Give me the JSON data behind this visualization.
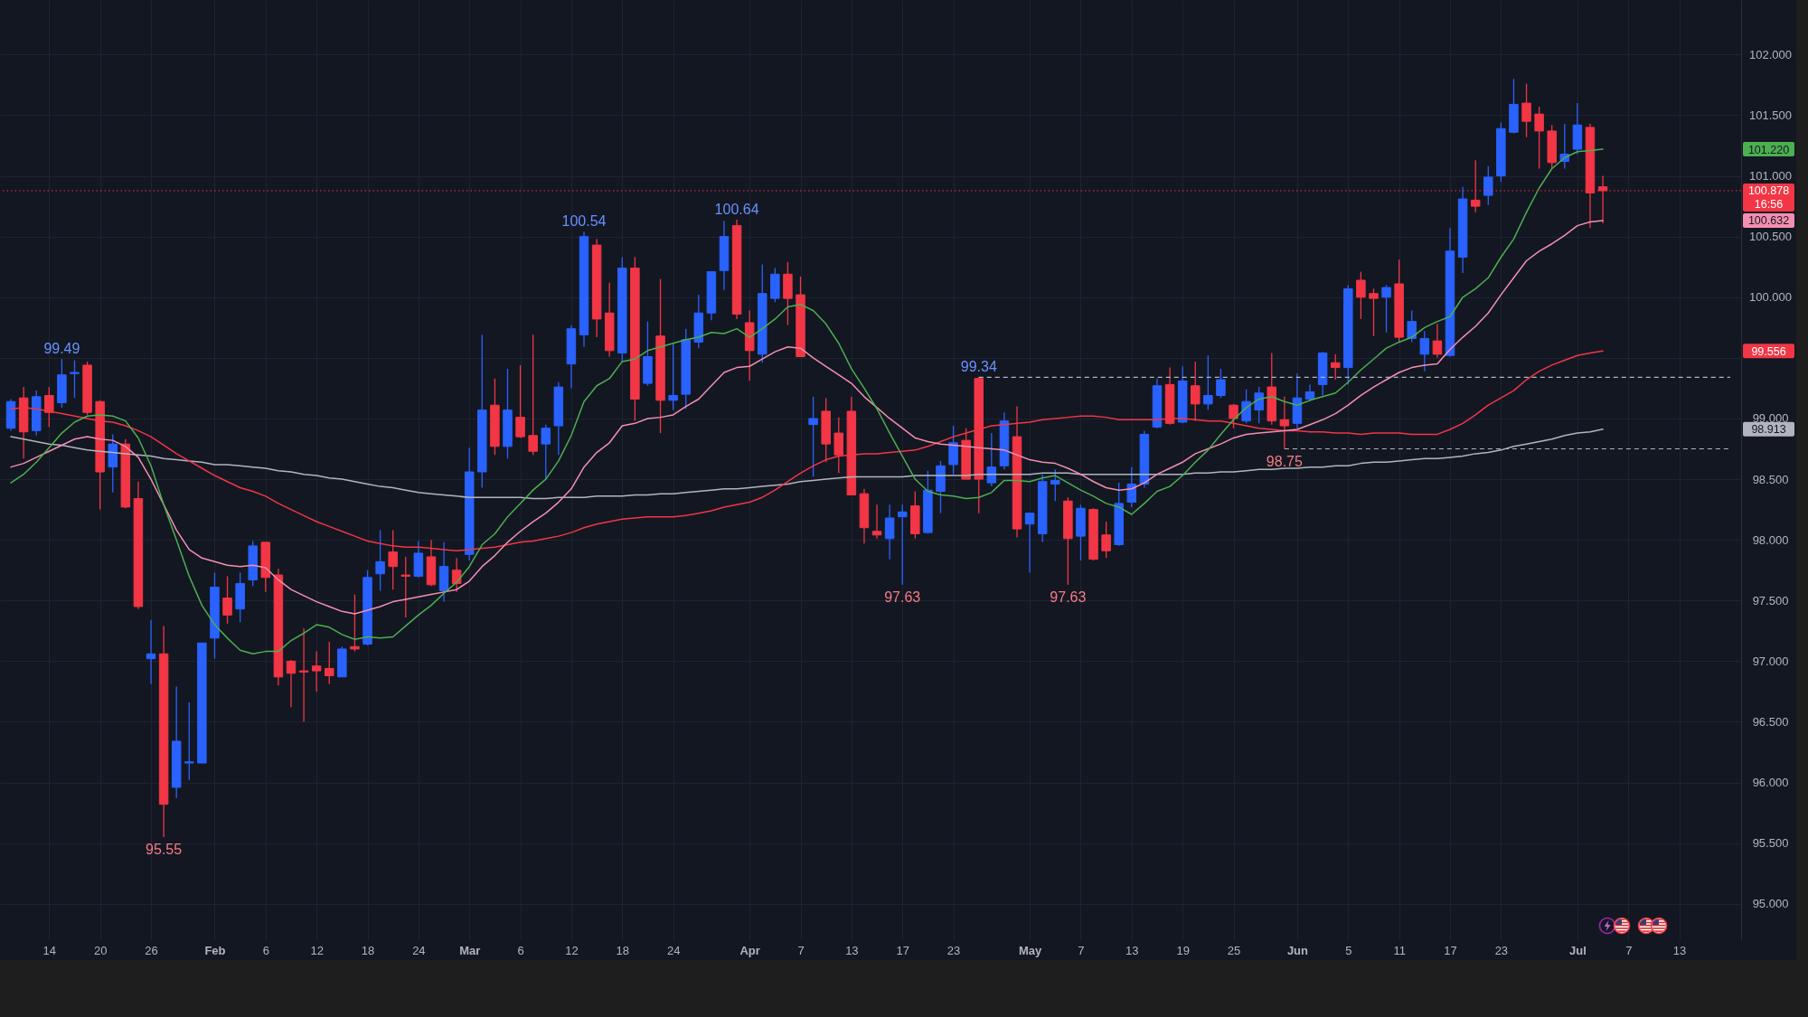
{
  "chart_data": {
    "type": "candlestick",
    "categories": [
      null,
      null,
      null,
      "14",
      null,
      null,
      null,
      "20",
      null,
      null,
      null,
      "26",
      null,
      null,
      null,
      null,
      "Feb",
      null,
      null,
      null,
      "6",
      null,
      null,
      null,
      "12",
      null,
      null,
      null,
      "18",
      null,
      null,
      null,
      "24",
      null,
      null,
      null,
      "Mar",
      null,
      null,
      null,
      "6",
      null,
      null,
      null,
      "12",
      null,
      null,
      null,
      "18",
      null,
      null,
      null,
      "24",
      null,
      null,
      null,
      null,
      null,
      "Apr",
      null,
      null,
      null,
      "7",
      null,
      null,
      null,
      "13",
      null,
      null,
      null,
      "17",
      null,
      null,
      null,
      "23",
      null,
      null,
      null,
      null,
      null,
      "May",
      null,
      null,
      null,
      "7",
      null,
      null,
      null,
      "13",
      null,
      null,
      null,
      "19",
      null,
      null,
      null,
      "25",
      null,
      null,
      null,
      null,
      "Jun",
      null,
      null,
      null,
      "5",
      null,
      null,
      null,
      "11",
      null,
      null,
      null,
      "17",
      null,
      null,
      null,
      "23",
      null,
      null,
      null,
      null,
      null,
      "Jul",
      null,
      null,
      null,
      "7",
      null,
      null,
      null,
      "13",
      null,
      null,
      null,
      null
    ],
    "ohlc": [
      [
        98.92,
        99.16,
        98.9,
        99.14
      ],
      [
        99.17,
        99.26,
        98.67,
        98.89
      ],
      [
        98.9,
        99.23,
        98.86,
        99.18
      ],
      [
        99.19,
        99.26,
        98.93,
        99.05
      ],
      [
        99.13,
        99.49,
        99.09,
        99.36
      ],
      [
        99.37,
        99.48,
        99.17,
        99.38
      ],
      [
        99.44,
        99.47,
        99.03,
        99.05
      ],
      [
        99.14,
        99.15,
        98.25,
        98.56
      ],
      [
        98.6,
        98.87,
        98.39,
        98.79
      ],
      [
        98.79,
        98.83,
        98.26,
        98.27
      ],
      [
        98.34,
        98.48,
        97.43,
        97.45
      ],
      [
        97.02,
        97.34,
        96.81,
        97.06
      ],
      [
        97.06,
        97.29,
        95.55,
        95.82
      ],
      [
        95.96,
        96.79,
        95.87,
        96.34
      ],
      [
        96.16,
        96.66,
        96.02,
        96.17
      ],
      [
        96.16,
        97.15,
        96.16,
        97.15
      ],
      [
        97.19,
        97.73,
        97.02,
        97.61
      ],
      [
        97.52,
        97.7,
        97.31,
        97.38
      ],
      [
        97.43,
        97.73,
        97.32,
        97.64
      ],
      [
        97.67,
        97.99,
        97.62,
        97.95
      ],
      [
        97.98,
        97.98,
        97.57,
        97.69
      ],
      [
        97.71,
        97.76,
        96.8,
        96.87
      ],
      [
        97.0,
        97.01,
        96.62,
        96.9
      ],
      [
        96.92,
        97.27,
        96.5,
        96.91
      ],
      [
        96.96,
        97.08,
        96.75,
        96.92
      ],
      [
        96.94,
        97.16,
        96.81,
        96.88
      ],
      [
        96.87,
        97.12,
        96.87,
        97.1
      ],
      [
        97.12,
        97.55,
        97.08,
        97.1
      ],
      [
        97.14,
        97.75,
        97.13,
        97.69
      ],
      [
        97.72,
        98.08,
        97.58,
        97.82
      ],
      [
        97.9,
        98.08,
        97.59,
        97.78
      ],
      [
        97.71,
        97.86,
        97.36,
        97.7
      ],
      [
        97.7,
        97.99,
        97.69,
        97.89
      ],
      [
        97.86,
        98.0,
        97.62,
        97.63
      ],
      [
        97.58,
        97.98,
        97.49,
        97.78
      ],
      [
        97.75,
        97.85,
        97.57,
        97.64
      ],
      [
        97.88,
        98.76,
        97.83,
        98.56
      ],
      [
        98.56,
        99.69,
        98.43,
        99.07
      ],
      [
        99.11,
        99.33,
        98.7,
        98.77
      ],
      [
        98.77,
        99.41,
        98.67,
        99.07
      ],
      [
        99.01,
        99.44,
        98.84,
        98.85
      ],
      [
        98.86,
        99.69,
        98.7,
        98.73
      ],
      [
        98.79,
        98.95,
        98.5,
        98.92
      ],
      [
        98.94,
        99.3,
        98.7,
        99.26
      ],
      [
        99.45,
        99.77,
        99.25,
        99.74
      ],
      [
        99.69,
        100.54,
        99.59,
        100.5
      ],
      [
        100.43,
        100.48,
        99.67,
        99.82
      ],
      [
        99.87,
        100.12,
        99.51,
        99.56
      ],
      [
        99.54,
        100.33,
        99.47,
        100.24
      ],
      [
        100.24,
        100.33,
        98.98,
        99.16
      ],
      [
        99.29,
        99.8,
        99.27,
        99.51
      ],
      [
        99.68,
        100.15,
        98.88,
        99.15
      ],
      [
        99.15,
        99.62,
        99.07,
        99.19
      ],
      [
        99.2,
        99.74,
        99.08,
        99.65
      ],
      [
        99.63,
        100.02,
        99.58,
        99.87
      ],
      [
        99.87,
        100.21,
        99.81,
        100.21
      ],
      [
        100.22,
        100.63,
        100.06,
        100.5
      ],
      [
        100.59,
        100.64,
        99.82,
        99.86
      ],
      [
        99.79,
        99.89,
        99.31,
        99.56
      ],
      [
        99.53,
        100.27,
        99.46,
        100.03
      ],
      [
        99.99,
        100.24,
        99.96,
        100.19
      ],
      [
        100.19,
        100.29,
        99.77,
        99.99
      ],
      [
        100.02,
        100.17,
        99.51,
        99.51
      ],
      [
        98.95,
        99.18,
        98.52,
        99.0
      ],
      [
        99.06,
        99.17,
        98.64,
        98.79
      ],
      [
        98.88,
        99.01,
        98.55,
        98.7
      ],
      [
        99.06,
        99.18,
        98.37,
        98.37
      ],
      [
        98.38,
        98.42,
        97.97,
        98.1
      ],
      [
        98.07,
        98.29,
        98.01,
        98.04
      ],
      [
        98.01,
        98.29,
        97.84,
        98.18
      ],
      [
        98.19,
        98.29,
        97.63,
        98.23
      ],
      [
        98.28,
        98.4,
        98.01,
        98.05
      ],
      [
        98.06,
        98.57,
        98.05,
        98.41
      ],
      [
        98.4,
        98.65,
        98.22,
        98.61
      ],
      [
        98.62,
        98.94,
        98.54,
        98.8
      ],
      [
        98.82,
        98.92,
        98.5,
        98.5
      ],
      [
        99.33,
        99.34,
        98.22,
        98.5
      ],
      [
        98.47,
        98.88,
        98.44,
        98.6
      ],
      [
        98.61,
        99.05,
        98.58,
        98.98
      ],
      [
        98.85,
        99.1,
        98.02,
        98.09
      ],
      [
        98.13,
        98.22,
        97.73,
        98.22
      ],
      [
        98.05,
        98.54,
        97.98,
        98.48
      ],
      [
        98.46,
        98.58,
        98.32,
        98.49
      ],
      [
        98.32,
        98.35,
        97.63,
        98.01
      ],
      [
        98.03,
        98.29,
        97.83,
        98.26
      ],
      [
        98.25,
        98.26,
        97.83,
        97.84
      ],
      [
        98.04,
        98.15,
        97.85,
        97.91
      ],
      [
        97.96,
        98.47,
        97.95,
        98.3
      ],
      [
        98.31,
        98.6,
        98.27,
        98.46
      ],
      [
        98.46,
        98.9,
        98.43,
        98.87
      ],
      [
        98.93,
        99.33,
        98.92,
        99.27
      ],
      [
        99.28,
        99.42,
        98.95,
        98.96
      ],
      [
        98.97,
        99.43,
        98.96,
        99.31
      ],
      [
        99.27,
        99.47,
        98.98,
        99.12
      ],
      [
        99.12,
        99.52,
        99.07,
        99.19
      ],
      [
        99.19,
        99.41,
        99.17,
        99.32
      ],
      [
        99.11,
        99.12,
        98.92,
        99.0
      ],
      [
        98.98,
        99.24,
        98.96,
        99.14
      ],
      [
        99.07,
        99.26,
        98.96,
        99.21
      ],
      [
        99.26,
        99.54,
        98.95,
        98.98
      ],
      [
        98.99,
        99.18,
        98.75,
        98.94
      ],
      [
        98.96,
        99.37,
        98.92,
        99.17
      ],
      [
        99.16,
        99.28,
        99.14,
        99.22
      ],
      [
        99.28,
        99.55,
        99.19,
        99.54
      ],
      [
        99.46,
        99.53,
        99.32,
        99.42
      ],
      [
        99.42,
        100.1,
        99.28,
        100.07
      ],
      [
        100.14,
        100.21,
        99.82,
        100.0
      ],
      [
        100.03,
        100.07,
        99.68,
        99.99
      ],
      [
        100.0,
        100.1,
        99.71,
        100.08
      ],
      [
        100.11,
        100.31,
        99.63,
        99.67
      ],
      [
        99.66,
        99.89,
        99.63,
        99.8
      ],
      [
        99.53,
        99.72,
        99.39,
        99.66
      ],
      [
        99.64,
        99.78,
        99.5,
        99.53
      ],
      [
        99.52,
        100.57,
        99.51,
        100.38
      ],
      [
        100.33,
        100.91,
        100.2,
        100.81
      ],
      [
        100.8,
        101.13,
        100.7,
        100.75
      ],
      [
        100.84,
        101.08,
        100.76,
        100.99
      ],
      [
        101.0,
        101.44,
        100.95,
        101.39
      ],
      [
        101.36,
        101.8,
        101.35,
        101.59
      ],
      [
        101.6,
        101.76,
        101.32,
        101.45
      ],
      [
        101.51,
        101.57,
        101.06,
        101.37
      ],
      [
        101.37,
        101.42,
        101.06,
        101.11
      ],
      [
        101.12,
        101.43,
        101.06,
        101.18
      ],
      [
        101.22,
        101.6,
        101.18,
        101.42
      ],
      [
        101.4,
        101.43,
        100.57,
        100.86
      ],
      [
        100.91,
        101.0,
        100.61,
        100.878
      ],
      null,
      null,
      null,
      null,
      null,
      null,
      null,
      null,
      null,
      null
    ],
    "colors": [
      "#2962ff",
      "#f23645",
      "#2962ff",
      "#f23645",
      "#2962ff",
      "#2962ff",
      "#f23645",
      "#f23645",
      "#2962ff",
      "#f23645",
      "#f23645",
      "#2962ff",
      "#f23645",
      "#2962ff",
      "#2962ff",
      "#2962ff",
      "#2962ff",
      "#f23645",
      "#2962ff",
      "#2962ff",
      "#f23645",
      "#f23645",
      "#f23645",
      "#f23645",
      "#f23645",
      "#f23645",
      "#2962ff",
      "#f23645",
      "#2962ff",
      "#2962ff",
      "#f23645",
      "#f23645",
      "#2962ff",
      "#f23645",
      "#2962ff",
      "#f23645",
      "#2962ff",
      "#2962ff",
      "#f23645",
      "#2962ff",
      "#f23645",
      "#f23645",
      "#2962ff",
      "#2962ff",
      "#2962ff",
      "#2962ff",
      "#f23645",
      "#f23645",
      "#2962ff",
      "#f23645",
      "#2962ff",
      "#f23645",
      "#2962ff",
      "#2962ff",
      "#2962ff",
      "#2962ff",
      "#2962ff",
      "#f23645",
      "#f23645",
      "#2962ff",
      "#2962ff",
      "#f23645",
      "#f23645",
      "#2962ff",
      "#f23645",
      "#f23645",
      "#f23645",
      "#f23645",
      "#f23645",
      "#2962ff",
      "#2962ff",
      "#f23645",
      "#2962ff",
      "#2962ff",
      "#2962ff",
      "#f23645",
      "#f23645",
      "#2962ff",
      "#2962ff",
      "#f23645",
      "#2962ff",
      "#2962ff",
      "#2962ff",
      "#f23645",
      "#2962ff",
      "#f23645",
      "#f23645",
      "#2962ff",
      "#2962ff",
      "#2962ff",
      "#2962ff",
      "#f23645",
      "#2962ff",
      "#f23645",
      "#2962ff",
      "#2962ff",
      "#f23645",
      "#2962ff",
      "#2962ff",
      "#f23645",
      "#f23645",
      "#2962ff",
      "#2962ff",
      "#2962ff",
      "#f23645",
      "#2962ff",
      "#f23645",
      "#f23645",
      "#2962ff",
      "#f23645",
      "#2962ff",
      "#2962ff",
      "#f23645",
      "#2962ff",
      "#2962ff",
      "#f23645",
      "#2962ff",
      "#2962ff",
      "#2962ff",
      "#f23645",
      "#f23645",
      "#f23645",
      "#2962ff",
      "#2962ff",
      "#f23645",
      "#f23645",
      null,
      null,
      null,
      null,
      null,
      null,
      null,
      null,
      null,
      null
    ],
    "series": [
      {
        "type": "line",
        "color": "#b2b5be",
        "values": [
          98.85,
          98.83,
          98.81,
          98.79,
          98.78,
          98.76,
          98.74,
          98.73,
          98.72,
          98.71,
          98.7,
          98.69,
          98.67,
          98.66,
          98.65,
          98.64,
          98.62,
          98.62,
          98.61,
          98.6,
          98.59,
          98.57,
          98.56,
          98.54,
          98.53,
          98.51,
          98.5,
          98.48,
          98.46,
          98.44,
          98.43,
          98.41,
          98.39,
          98.38,
          98.37,
          98.36,
          98.35,
          98.35,
          98.35,
          98.35,
          98.35,
          98.34,
          98.34,
          98.35,
          98.35,
          98.35,
          98.36,
          98.36,
          98.36,
          98.37,
          98.37,
          98.38,
          98.38,
          98.39,
          98.4,
          98.41,
          98.42,
          98.42,
          98.43,
          98.44,
          98.45,
          98.46,
          98.48,
          98.49,
          98.5,
          98.51,
          98.52,
          98.52,
          98.52,
          98.52,
          98.52,
          98.53,
          98.53,
          98.53,
          98.53,
          98.53,
          98.54,
          98.54,
          98.54,
          98.54,
          98.54,
          98.55,
          98.55,
          98.55,
          98.54,
          98.54,
          98.54,
          98.54,
          98.54,
          98.54,
          98.54,
          98.54,
          98.54,
          98.55,
          98.55,
          98.56,
          98.56,
          98.57,
          98.58,
          98.58,
          98.59,
          98.59,
          98.6,
          98.6,
          98.61,
          98.61,
          98.63,
          98.64,
          98.64,
          98.65,
          98.66,
          98.67,
          98.67,
          98.68,
          98.69,
          98.71,
          98.72,
          98.74,
          98.77,
          98.79,
          98.81,
          98.83,
          98.86,
          98.88,
          98.89,
          98.913,
          null,
          null,
          null,
          null,
          null,
          null,
          null,
          null,
          null,
          null
        ]
      },
      {
        "type": "line",
        "color": "#f23645",
        "values": [
          99.08,
          99.09,
          99.08,
          99.06,
          99.04,
          99.02,
          99.0,
          98.98,
          98.97,
          98.94,
          98.9,
          98.85,
          98.78,
          98.71,
          98.65,
          98.59,
          98.53,
          98.48,
          98.43,
          98.4,
          98.36,
          98.3,
          98.25,
          98.2,
          98.15,
          98.11,
          98.07,
          98.03,
          97.99,
          97.97,
          97.95,
          97.94,
          97.94,
          97.93,
          97.92,
          97.91,
          97.92,
          97.93,
          97.94,
          97.96,
          97.98,
          97.99,
          98.01,
          98.03,
          98.06,
          98.1,
          98.13,
          98.15,
          98.17,
          98.18,
          98.19,
          98.19,
          98.19,
          98.2,
          98.22,
          98.24,
          98.27,
          98.29,
          98.31,
          98.35,
          98.41,
          98.48,
          98.55,
          98.61,
          98.66,
          98.69,
          98.7,
          98.71,
          98.71,
          98.72,
          98.73,
          98.74,
          98.77,
          98.81,
          98.85,
          98.88,
          98.91,
          98.94,
          98.95,
          98.96,
          98.97,
          98.99,
          99.0,
          99.01,
          99.02,
          99.02,
          99.01,
          98.99,
          98.99,
          98.99,
          98.99,
          99.0,
          99.0,
          98.99,
          98.98,
          98.98,
          98.96,
          98.94,
          98.92,
          98.91,
          98.9,
          98.9,
          98.89,
          98.89,
          98.88,
          98.88,
          98.87,
          98.88,
          98.88,
          98.88,
          98.87,
          98.87,
          98.87,
          98.91,
          98.96,
          99.03,
          99.11,
          99.17,
          99.23,
          99.32,
          99.39,
          99.44,
          99.48,
          99.52,
          99.54,
          99.556,
          null,
          null,
          null,
          null,
          null,
          null,
          null,
          null,
          null,
          null
        ]
      },
      {
        "type": "line",
        "color": "#f48fb1",
        "values": [
          98.6,
          98.63,
          98.68,
          98.73,
          98.78,
          98.83,
          98.85,
          98.83,
          98.82,
          98.77,
          98.68,
          98.5,
          98.29,
          98.08,
          97.92,
          97.85,
          97.82,
          97.79,
          97.78,
          97.79,
          97.77,
          97.67,
          97.59,
          97.54,
          97.49,
          97.45,
          97.41,
          97.39,
          97.42,
          97.45,
          97.49,
          97.51,
          97.53,
          97.55,
          97.57,
          97.59,
          97.66,
          97.78,
          97.87,
          97.98,
          98.07,
          98.15,
          98.22,
          98.31,
          98.42,
          98.6,
          98.72,
          98.8,
          98.94,
          98.96,
          99.0,
          99.01,
          99.03,
          99.1,
          99.16,
          99.27,
          99.38,
          99.42,
          99.43,
          99.49,
          99.55,
          99.59,
          99.58,
          99.5,
          99.43,
          99.36,
          99.29,
          99.18,
          99.09,
          99.0,
          98.92,
          98.84,
          98.81,
          98.79,
          98.78,
          98.77,
          98.76,
          98.75,
          98.74,
          98.7,
          98.66,
          98.64,
          98.63,
          98.59,
          98.54,
          98.48,
          98.43,
          98.41,
          98.42,
          98.47,
          98.54,
          98.59,
          98.64,
          98.71,
          98.75,
          98.79,
          98.84,
          98.87,
          98.88,
          98.89,
          98.9,
          98.91,
          98.95,
          98.99,
          99.04,
          99.11,
          99.19,
          99.26,
          99.32,
          99.38,
          99.42,
          99.44,
          99.45,
          99.57,
          99.67,
          99.76,
          99.87,
          100.02,
          100.16,
          100.3,
          100.38,
          100.44,
          100.51,
          100.59,
          100.62,
          100.632,
          null,
          null,
          null,
          null,
          null,
          null,
          null,
          null,
          null,
          null
        ]
      },
      {
        "type": "line",
        "color": "#4caf50",
        "values": [
          98.47,
          98.54,
          98.64,
          98.76,
          98.88,
          98.97,
          99.02,
          99.03,
          99.02,
          98.98,
          98.84,
          98.61,
          98.29,
          98.0,
          97.7,
          97.46,
          97.3,
          97.19,
          97.09,
          97.06,
          97.08,
          97.08,
          97.17,
          97.23,
          97.3,
          97.28,
          97.22,
          97.18,
          97.2,
          97.19,
          97.2,
          97.29,
          97.38,
          97.46,
          97.56,
          97.65,
          97.78,
          97.96,
          98.05,
          98.19,
          98.3,
          98.41,
          98.5,
          98.65,
          98.86,
          99.14,
          99.27,
          99.33,
          99.47,
          99.49,
          99.56,
          99.59,
          99.62,
          99.65,
          99.67,
          99.71,
          99.7,
          99.74,
          99.67,
          99.74,
          99.82,
          99.92,
          99.94,
          99.89,
          99.78,
          99.62,
          99.41,
          99.25,
          99.08,
          98.88,
          98.69,
          98.5,
          98.4,
          98.37,
          98.36,
          98.34,
          98.35,
          98.39,
          98.49,
          98.49,
          98.48,
          98.51,
          98.53,
          98.47,
          98.41,
          98.36,
          98.3,
          98.27,
          98.21,
          98.3,
          98.4,
          98.44,
          98.53,
          98.64,
          98.74,
          98.87,
          98.99,
          99.09,
          99.16,
          99.18,
          99.14,
          99.11,
          99.15,
          99.18,
          99.21,
          99.3,
          99.4,
          99.49,
          99.58,
          99.63,
          99.67,
          99.75,
          99.8,
          99.84,
          100.0,
          100.07,
          100.16,
          100.33,
          100.48,
          100.7,
          100.9,
          101.06,
          101.15,
          101.2,
          101.21,
          101.22,
          null,
          null,
          null,
          null,
          null,
          null,
          null,
          null,
          null,
          null
        ]
      },
      {
        "type": "line",
        "color": "#b2b5be",
        "line_style": "dashed",
        "values": [
          null,
          null,
          null,
          null,
          null,
          null,
          null,
          null,
          null,
          null,
          null,
          null,
          null,
          null,
          null,
          null,
          null,
          null,
          null,
          null,
          null,
          null,
          null,
          null,
          null,
          null,
          null,
          null,
          null,
          null,
          null,
          null,
          null,
          null,
          null,
          null,
          null,
          null,
          null,
          null,
          null,
          null,
          null,
          null,
          null,
          null,
          null,
          null,
          null,
          null,
          null,
          null,
          null,
          null,
          null,
          null,
          null,
          null,
          null,
          null,
          null,
          null,
          null,
          null,
          null,
          null,
          null,
          null,
          null,
          null,
          null,
          null,
          null,
          null,
          null,
          null,
          99.34,
          99.34,
          99.34,
          99.34,
          99.34,
          99.34,
          99.34,
          99.34,
          99.34,
          99.34,
          99.34,
          99.34,
          99.34,
          99.34,
          99.34,
          99.34,
          99.34,
          99.34,
          99.34,
          99.34,
          99.34,
          99.34,
          99.34,
          99.34,
          99.34,
          99.34,
          99.34,
          99.34,
          99.34,
          99.34,
          99.34,
          99.34,
          99.34,
          99.34,
          99.34,
          99.34,
          99.34,
          99.34,
          99.34,
          99.34,
          99.34,
          99.34,
          99.34,
          99.34,
          99.34,
          99.34,
          99.34,
          99.34,
          99.34,
          99.34,
          99.34,
          99.34,
          99.34,
          99.34,
          99.34,
          99.34,
          99.34,
          99.34,
          99.34,
          99.34
        ]
      },
      {
        "type": "line",
        "color": "#b2b5be",
        "line_style": "dashed",
        "values": [
          null,
          null,
          null,
          null,
          null,
          null,
          null,
          null,
          null,
          null,
          null,
          null,
          null,
          null,
          null,
          null,
          null,
          null,
          null,
          null,
          null,
          null,
          null,
          null,
          null,
          null,
          null,
          null,
          null,
          null,
          null,
          null,
          null,
          null,
          null,
          null,
          null,
          null,
          null,
          null,
          null,
          null,
          null,
          null,
          null,
          null,
          null,
          null,
          null,
          null,
          null,
          null,
          null,
          null,
          null,
          null,
          null,
          null,
          null,
          null,
          null,
          null,
          null,
          null,
          null,
          null,
          null,
          null,
          null,
          null,
          null,
          null,
          null,
          null,
          null,
          null,
          null,
          null,
          null,
          null,
          null,
          null,
          null,
          null,
          null,
          null,
          null,
          null,
          null,
          null,
          null,
          null,
          null,
          null,
          null,
          null,
          null,
          null,
          null,
          null,
          98.75,
          98.75,
          98.75,
          98.75,
          98.75,
          98.75,
          98.75,
          98.75,
          98.75,
          98.75,
          98.75,
          98.75,
          98.75,
          98.75,
          98.75,
          98.75,
          98.75,
          98.75,
          98.75,
          98.75,
          98.75,
          98.75,
          98.75,
          98.75,
          98.75,
          98.75,
          98.75,
          98.75,
          98.75,
          98.75,
          98.75,
          98.75,
          98.75,
          98.75,
          98.75,
          98.75
        ]
      }
    ],
    "ylim": [
      94.7,
      102.45
    ],
    "yticks": [
      {
        "value": 95,
        "label": "95.000"
      },
      {
        "value": 95.5,
        "label": "95.500"
      },
      {
        "value": 96,
        "label": "96.000"
      },
      {
        "value": 96.5,
        "label": "96.500"
      },
      {
        "value": 97,
        "label": "97.000"
      },
      {
        "value": 97.5,
        "label": "97.500"
      },
      {
        "value": 98,
        "label": "98.000"
      },
      {
        "value": 98.5,
        "label": "98.500"
      },
      {
        "value": 99,
        "label": "99.000"
      },
      {
        "value": 99.5,
        "label": null
      },
      {
        "value": 100,
        "label": "100.000"
      },
      {
        "value": 100.5,
        "label": "100.500"
      },
      {
        "value": 101,
        "label": "101.000"
      },
      {
        "value": 101.5,
        "label": "101.500"
      },
      {
        "value": 102,
        "label": "102.000"
      }
    ],
    "grid": true,
    "ref_lines": [
      {
        "axis": "y",
        "value": 100.878,
        "label": "100.878",
        "color": "#f23645",
        "line_style": "dotted"
      }
    ],
    "annotations": [
      "16:56",
      {
        "text": "99.49",
        "y": 99.49
      },
      {
        "text": "100.54",
        "y": 100.54
      },
      {
        "text": "100.64",
        "y": 100.64
      },
      {
        "text": "99.34",
        "y": 99.34
      },
      {
        "text": "95.55",
        "y": 95.55
      },
      {
        "text": "97.63",
        "y": 97.63
      },
      {
        "text": "97.63",
        "y": 97.63
      },
      {
        "text": "98.75",
        "y": 98.75
      },
      "101.220",
      "100.632",
      "99.556",
      "98.913"
    ]
  }
}
